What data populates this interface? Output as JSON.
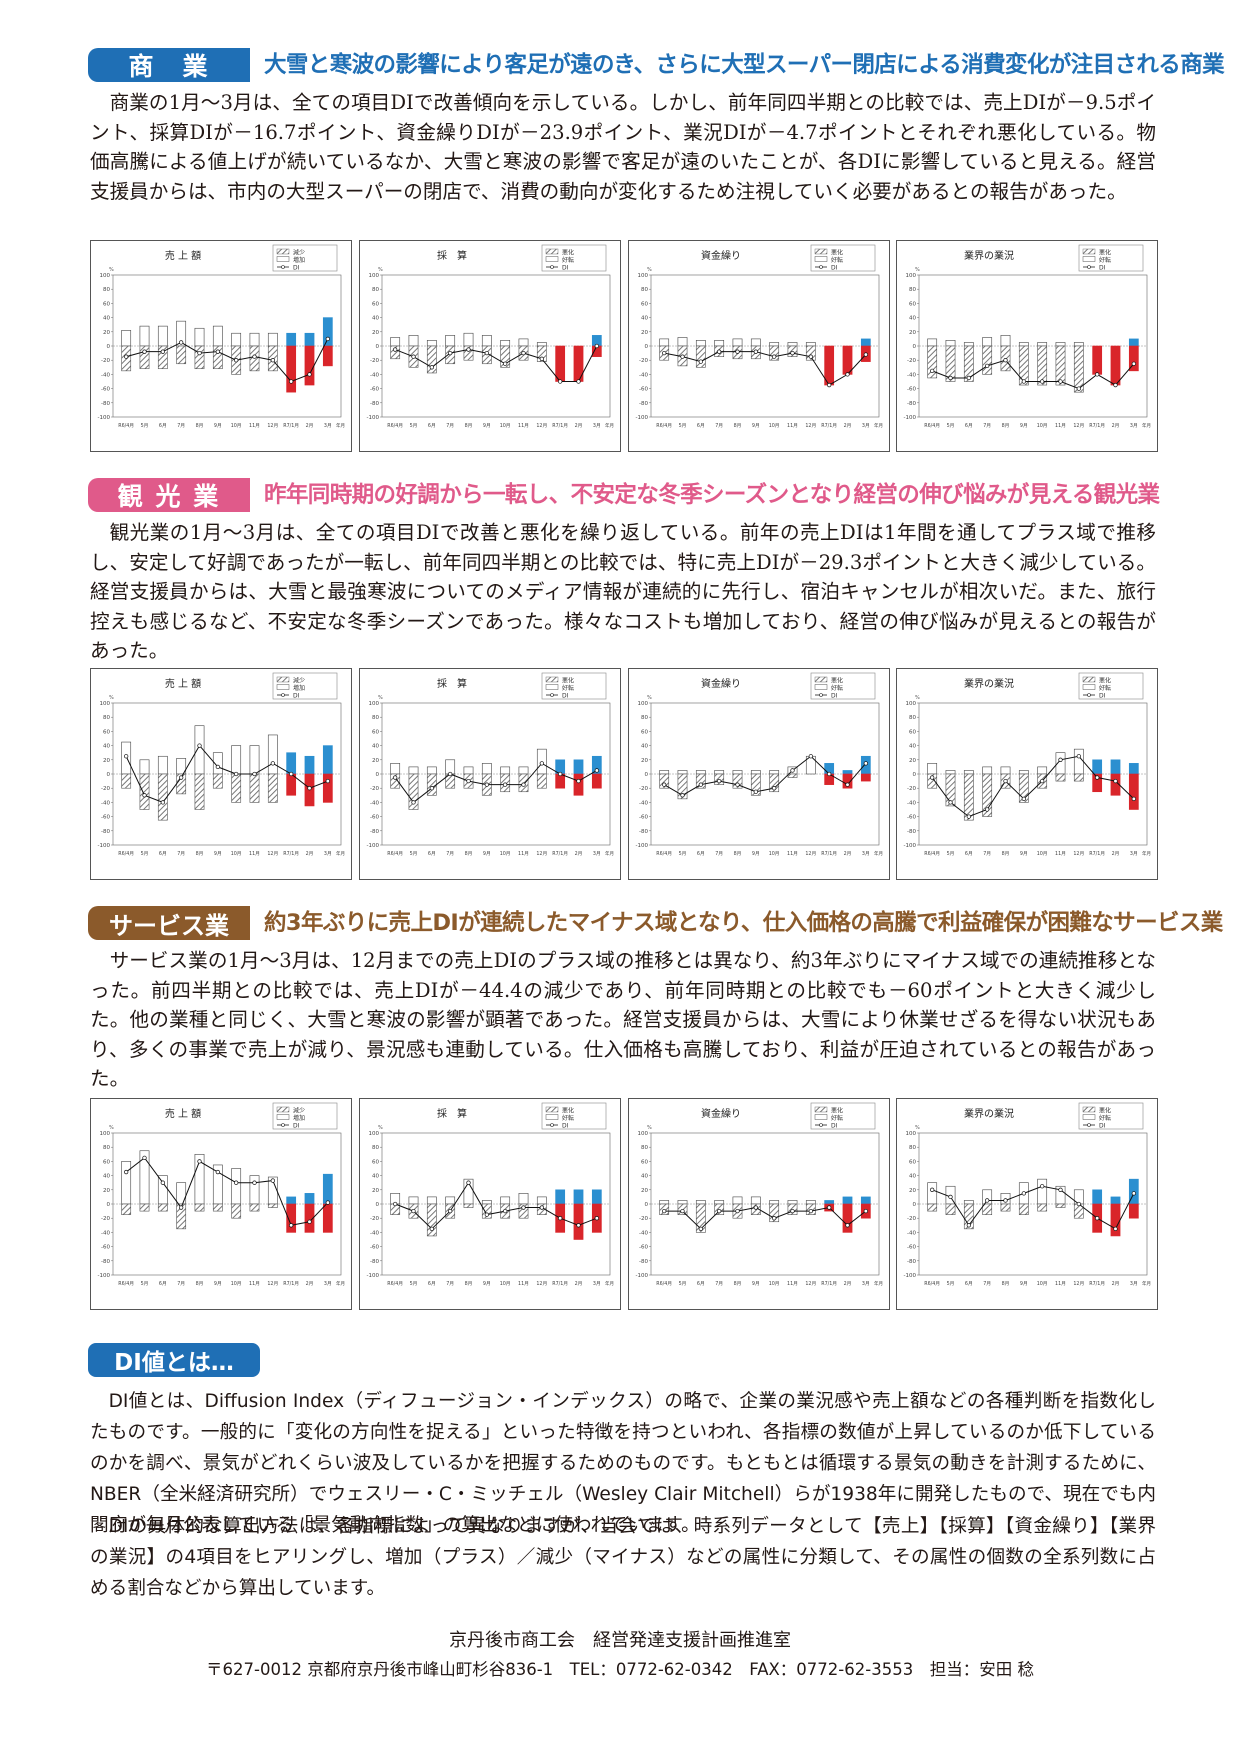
{
  "sections": [
    {
      "badge": "商　業",
      "color": "#1f6fb5",
      "headline": "大雪と寒波の影響により客足が遠のき、さらに大型スーパー閉店による消費変化が注目される商業",
      "body": "商業の1月～3月は、全ての項目DIで改善傾向を示している。しかし、前年同四半期との比較では、売上DIが－9.5ポイント、採算DIが－16.7ポイント、資金繰りDIが－23.9ポイント、業況DIが－4.7ポイントとそれぞれ悪化している。物価高騰による値上げが続いているなか、大雪と寒波の影響で客足が遠のいたことが、各DIに影響していると見える。経営支援員からは、市内の大型スーパーの閉店で、消費の動向が変化するため注視していく必要があるとの報告があった。",
      "charts": [
        {
          "title": "売 上 額",
          "legend": [
            "減少",
            "増加",
            "DI"
          ],
          "plus": [
            22,
            28,
            28,
            35,
            25,
            28,
            18,
            18,
            18,
            18,
            18,
            40
          ],
          "minus": [
            -35,
            -32,
            -32,
            -25,
            -32,
            -32,
            -40,
            -35,
            -35,
            -65,
            -55,
            -28
          ],
          "di": [
            -15,
            -8,
            -8,
            5,
            -10,
            -8,
            -20,
            -15,
            -20,
            -50,
            -40,
            10
          ]
        },
        {
          "title": "採　算",
          "legend": [
            "悪化",
            "好転",
            "DI"
          ],
          "plus": [
            12,
            15,
            8,
            15,
            18,
            15,
            8,
            10,
            5,
            0,
            0,
            15
          ],
          "minus": [
            -18,
            -30,
            -38,
            -25,
            -20,
            -25,
            -30,
            -20,
            -22,
            -50,
            -50,
            -15
          ],
          "di": [
            -5,
            -15,
            -30,
            -10,
            -5,
            -10,
            -25,
            -10,
            -18,
            -50,
            -50,
            0
          ]
        },
        {
          "title": "資金繰り",
          "legend": [
            "悪化",
            "好転",
            "DI"
          ],
          "plus": [
            10,
            12,
            8,
            8,
            10,
            10,
            5,
            5,
            5,
            0,
            0,
            10
          ],
          "minus": [
            -20,
            -28,
            -30,
            -15,
            -18,
            -18,
            -20,
            -15,
            -20,
            -55,
            -40,
            -22
          ],
          "di": [
            -10,
            -15,
            -22,
            -8,
            -8,
            -8,
            -15,
            -10,
            -15,
            -55,
            -40,
            -12
          ]
        },
        {
          "title": "業界の業況",
          "legend": [
            "悪化",
            "好転",
            "DI"
          ],
          "plus": [
            10,
            8,
            5,
            12,
            15,
            5,
            5,
            5,
            5,
            0,
            0,
            10
          ],
          "minus": [
            -45,
            -50,
            -50,
            -40,
            -35,
            -55,
            -55,
            -55,
            -65,
            -40,
            -55,
            -35
          ],
          "di": [
            -35,
            -45,
            -45,
            -28,
            -20,
            -50,
            -50,
            -50,
            -60,
            -40,
            -55,
            -25
          ]
        }
      ]
    },
    {
      "badge": "観 光 業",
      "color": "#e05a8a",
      "headline": "昨年同時期の好調から一転し、不安定な冬季シーズンとなり経営の伸び悩みが見える観光業",
      "body": "観光業の1月～3月は、全ての項目DIで改善と悪化を繰り返している。前年の売上DIは1年間を通してプラス域で推移し、安定して好調であったが一転し、前年同四半期との比較では、特に売上DIが－29.3ポイントと大きく減少している。経営支援員からは、大雪と最強寒波についてのメディア情報が連続的に先行し、宿泊キャンセルが相次いだ。また、旅行控えも感じるなど、不安定な冬季シーズンであった。様々なコストも増加しており、経営の伸び悩みが見えるとの報告があった。",
      "charts": [
        {
          "title": "売 上 額",
          "legend": [
            "減少",
            "増加",
            "DI"
          ],
          "plus": [
            45,
            20,
            25,
            22,
            68,
            30,
            40,
            40,
            55,
            30,
            25,
            40
          ],
          "minus": [
            -20,
            -50,
            -65,
            -28,
            -50,
            -20,
            -40,
            -40,
            -40,
            -30,
            -45,
            -40
          ],
          "di": [
            25,
            -30,
            -40,
            -5,
            40,
            10,
            0,
            0,
            15,
            0,
            -20,
            -10
          ]
        },
        {
          "title": "採　算",
          "legend": [
            "悪化",
            "好転",
            "DI"
          ],
          "plus": [
            15,
            10,
            10,
            20,
            10,
            15,
            10,
            10,
            35,
            20,
            20,
            25
          ],
          "minus": [
            -20,
            -50,
            -30,
            -20,
            -20,
            -30,
            -25,
            -25,
            -20,
            -20,
            -30,
            -20
          ],
          "di": [
            -5,
            -40,
            -20,
            0,
            -10,
            -15,
            -15,
            -15,
            15,
            0,
            -10,
            5
          ]
        },
        {
          "title": "資金繰り",
          "legend": [
            "悪化",
            "好転",
            "DI"
          ],
          "plus": [
            5,
            5,
            5,
            5,
            5,
            5,
            5,
            10,
            25,
            15,
            5,
            25
          ],
          "minus": [
            -20,
            -35,
            -20,
            -15,
            -20,
            -30,
            -25,
            -5,
            0,
            -15,
            -20,
            -10
          ],
          "di": [
            -15,
            -30,
            -15,
            -10,
            -15,
            -25,
            -20,
            5,
            25,
            0,
            -15,
            15
          ]
        },
        {
          "title": "業界の業況",
          "legend": [
            "悪化",
            "好転",
            "DI"
          ],
          "plus": [
            15,
            5,
            5,
            10,
            10,
            5,
            10,
            30,
            35,
            20,
            20,
            15
          ],
          "minus": [
            -20,
            -45,
            -65,
            -60,
            -20,
            -40,
            -20,
            -10,
            -10,
            -25,
            -30,
            -50
          ],
          "di": [
            -5,
            -40,
            -60,
            -50,
            -10,
            -35,
            -10,
            20,
            25,
            -5,
            -10,
            -35
          ]
        }
      ]
    },
    {
      "badge": "サービス業",
      "color": "#8b5a2b",
      "headline": "約3年ぶりに売上DIが連続したマイナス域となり、仕入価格の高騰で利益確保が困難なサービス業",
      "body": "サービス業の1月～3月は、12月までの売上DIのプラス域の推移とは異なり、約3年ぶりにマイナス域での連続推移となった。前四半期との比較では、売上DIが－44.4の減少であり、前年同時期との比較でも－60ポイントと大きく減少した。他の業種と同じく、大雪と寒波の影響が顕著であった。経営支援員からは、大雪により休業せざるを得ない状況もあり、多くの事業で売上が減り、景況感も連動している。仕入価格も高騰しており、利益が圧迫されているとの報告があった。",
      "charts": [
        {
          "title": "売 上 額",
          "legend": [
            "減少",
            "増加",
            "DI"
          ],
          "plus": [
            60,
            75,
            40,
            30,
            70,
            55,
            50,
            40,
            38,
            10,
            15,
            42
          ],
          "minus": [
            -15,
            -10,
            -10,
            -35,
            -10,
            -10,
            -20,
            -10,
            -5,
            -40,
            -40,
            -40
          ],
          "di": [
            45,
            65,
            30,
            -5,
            60,
            45,
            30,
            30,
            33,
            -30,
            -25,
            2
          ]
        },
        {
          "title": "採　算",
          "legend": [
            "悪化",
            "好転",
            "DI"
          ],
          "plus": [
            15,
            10,
            10,
            10,
            35,
            5,
            10,
            15,
            10,
            20,
            20,
            20
          ],
          "minus": [
            -15,
            -20,
            -45,
            -20,
            -5,
            -20,
            -20,
            -20,
            -15,
            -40,
            -50,
            -40
          ],
          "di": [
            0,
            -10,
            -35,
            -10,
            30,
            -15,
            -10,
            -5,
            -5,
            -20,
            -30,
            -20
          ]
        },
        {
          "title": "資金繰り",
          "legend": [
            "悪化",
            "好転",
            "DI"
          ],
          "plus": [
            5,
            5,
            5,
            5,
            10,
            10,
            5,
            5,
            5,
            5,
            10,
            10
          ],
          "minus": [
            -15,
            -15,
            -40,
            -15,
            -20,
            -15,
            -25,
            -15,
            -15,
            -10,
            -40,
            -20
          ],
          "di": [
            -10,
            -10,
            -35,
            -10,
            -10,
            -5,
            -20,
            -10,
            -10,
            -5,
            -30,
            -10
          ]
        },
        {
          "title": "業界の業況",
          "legend": [
            "悪化",
            "好転",
            "DI"
          ],
          "plus": [
            30,
            25,
            5,
            20,
            15,
            30,
            35,
            25,
            20,
            20,
            10,
            35
          ],
          "minus": [
            -10,
            -15,
            -35,
            -15,
            -10,
            -15,
            -10,
            -5,
            -20,
            -40,
            -45,
            -20
          ],
          "di": [
            20,
            10,
            -30,
            5,
            5,
            15,
            25,
            20,
            0,
            -20,
            -35,
            15
          ]
        }
      ]
    }
  ],
  "month_labels": [
    "R6/4月",
    "5月",
    "6月",
    "7月",
    "8月",
    "9月",
    "10月",
    "11月",
    "12月",
    "R7/1月",
    "2月",
    "3月"
  ],
  "axis_unit": "%",
  "axis_suffix": "年月",
  "y_ticks": [
    "100",
    "80",
    "60",
    "40",
    "20",
    "0",
    "-20",
    "-40",
    "-60",
    "-80",
    "-100"
  ],
  "colors": {
    "plus_highlight": "#2b8fd0",
    "minus_highlight": "#d9252a",
    "hatch": "#777777"
  },
  "di_section": {
    "badge": "DI値とは…",
    "para1": "DI値とは、Diffusion Index（ディフュージョン・インデックス）の略で、企業の業況感や売上額などの各種判断を指数化したものです。一般的に「変化の方向性を捉える」といった特徴を持つといわれ、各指標の数値が上昇しているのか低下しているのかを調べ、景気がどれくらい波及しているかを把握するためのものです。もともとは循環する景気の動きを計測するために、NBER（全米経済研究所）でウェスリー・C・ミッチェル（Wesley Clair Mitchell）らが1938年に開発したもので、現在でも内閣府が毎月公表している「景気動向指数」の算出などに使われています。",
    "para2": "DIの具体的な算出方法は、各指標によって異なりますが、当会では、時系列データとして【売上】【採算】【資金繰り】【業界の業況】の4項目をヒアリングし、増加（プラス）／減少（マイナス）などの属性に分類して、その属性の個数の全系列数に占める割合などから算出しています。"
  },
  "footer": {
    "org": "京丹後市商工会　経営発達支援計画推進室",
    "address": "〒627-0012 京都府京丹後市峰山町杉谷836-1　TEL：0772-62-0342　FAX：0772-62-3553　担当：安田 稔"
  }
}
